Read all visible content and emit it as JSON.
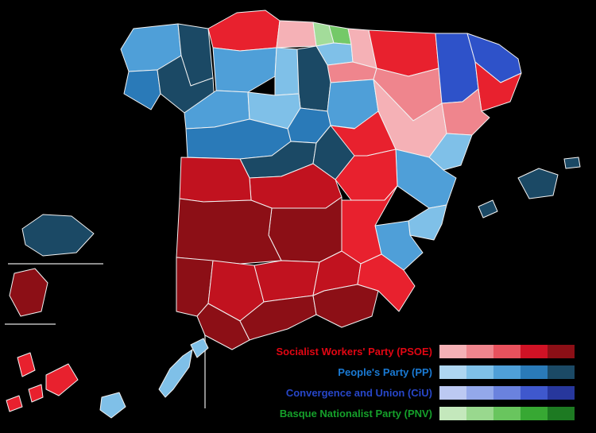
{
  "title": "Spain provincial election results choropleth map",
  "map": {
    "border_color": "#f2f2f2",
    "separator_color": "#8c8c8c",
    "provinces": [
      {
        "id": "a-coruna",
        "party": "PP",
        "fill": "#4f9fd8"
      },
      {
        "id": "lugo",
        "party": "PP",
        "fill": "#1b4965"
      },
      {
        "id": "pontevedra",
        "party": "PP",
        "fill": "#2a7ab8"
      },
      {
        "id": "ourense",
        "party": "PP",
        "fill": "#1b4965"
      },
      {
        "id": "asturias",
        "party": "PSOE",
        "fill": "#e8212e"
      },
      {
        "id": "cantabria",
        "party": "PSOE",
        "fill": "#f5b1b6"
      },
      {
        "id": "bizkaia",
        "party": "PNV",
        "fill": "#a3dc9a"
      },
      {
        "id": "gipuzkoa",
        "party": "PNV",
        "fill": "#74c968"
      },
      {
        "id": "alava",
        "party": "PP",
        "fill": "#7fc0e8"
      },
      {
        "id": "navarra",
        "party": "PSOE",
        "fill": "#f5b1b6"
      },
      {
        "id": "la-rioja",
        "party": "PSOE",
        "fill": "#ef858d"
      },
      {
        "id": "leon",
        "party": "PP",
        "fill": "#4f9fd8"
      },
      {
        "id": "palencia",
        "party": "PP",
        "fill": "#7fc0e8"
      },
      {
        "id": "burgos",
        "party": "PP",
        "fill": "#1b4965"
      },
      {
        "id": "zamora",
        "party": "PP",
        "fill": "#4f9fd8"
      },
      {
        "id": "valladolid",
        "party": "PP",
        "fill": "#7fc0e8"
      },
      {
        "id": "soria",
        "party": "PP",
        "fill": "#4f9fd8"
      },
      {
        "id": "segovia",
        "party": "PP",
        "fill": "#2a7ab8"
      },
      {
        "id": "salamanca",
        "party": "PP",
        "fill": "#2a7ab8"
      },
      {
        "id": "avila",
        "party": "PP",
        "fill": "#1b4965"
      },
      {
        "id": "madrid",
        "party": "PP",
        "fill": "#1b4965"
      },
      {
        "id": "huesca",
        "party": "PSOE",
        "fill": "#e8212e"
      },
      {
        "id": "zaragoza",
        "party": "PSOE",
        "fill": "#ef858d"
      },
      {
        "id": "teruel",
        "party": "PSOE",
        "fill": "#f5b1b6"
      },
      {
        "id": "lleida",
        "party": "CiU",
        "fill": "#2e52c9"
      },
      {
        "id": "girona",
        "party": "CiU",
        "fill": "#2e52c9"
      },
      {
        "id": "barcelona",
        "party": "PSOE",
        "fill": "#e8212e"
      },
      {
        "id": "tarragona",
        "party": "PSOE",
        "fill": "#ef858d"
      },
      {
        "id": "castellon",
        "party": "PP",
        "fill": "#7fc0e8"
      },
      {
        "id": "valencia",
        "party": "PP",
        "fill": "#4f9fd8"
      },
      {
        "id": "alicante",
        "party": "PP",
        "fill": "#7fc0e8"
      },
      {
        "id": "murcia",
        "party": "PP",
        "fill": "#4f9fd8"
      },
      {
        "id": "guadalajara",
        "party": "PSOE",
        "fill": "#e8212e"
      },
      {
        "id": "cuenca",
        "party": "PSOE",
        "fill": "#e8212e"
      },
      {
        "id": "toledo",
        "party": "PSOE",
        "fill": "#c1121f"
      },
      {
        "id": "albacete",
        "party": "PSOE",
        "fill": "#e8212e"
      },
      {
        "id": "ciudad-real",
        "party": "PSOE",
        "fill": "#8c0f16"
      },
      {
        "id": "caceres",
        "party": "PSOE",
        "fill": "#c1121f"
      },
      {
        "id": "badajoz",
        "party": "PSOE",
        "fill": "#8c0f16"
      },
      {
        "id": "huelva",
        "party": "PSOE",
        "fill": "#8c0f16"
      },
      {
        "id": "sevilla",
        "party": "PSOE",
        "fill": "#c1121f"
      },
      {
        "id": "cadiz",
        "party": "PSOE",
        "fill": "#8c0f16"
      },
      {
        "id": "cordoba",
        "party": "PSOE",
        "fill": "#c1121f"
      },
      {
        "id": "malaga",
        "party": "PSOE",
        "fill": "#8c0f16"
      },
      {
        "id": "jaen",
        "party": "PSOE",
        "fill": "#c1121f"
      },
      {
        "id": "granada",
        "party": "PSOE",
        "fill": "#8c0f16"
      },
      {
        "id": "almeria",
        "party": "PSOE",
        "fill": "#e8212e"
      },
      {
        "id": "mallorca",
        "party": "PP",
        "fill": "#1b4965"
      },
      {
        "id": "menorca",
        "party": "PP",
        "fill": "#1b4965"
      },
      {
        "id": "ibiza",
        "party": "PP",
        "fill": "#1b4965"
      },
      {
        "id": "tenerife-inset",
        "party": "PP",
        "fill": "#1b4965"
      },
      {
        "id": "gran-canaria-inset",
        "party": "PSOE",
        "fill": "#8c0f16"
      },
      {
        "id": "la-palma",
        "party": "PSOE",
        "fill": "#e8212e"
      },
      {
        "id": "el-hierro",
        "party": "PSOE",
        "fill": "#e8212e"
      },
      {
        "id": "la-gomera",
        "party": "PSOE",
        "fill": "#e8212e"
      },
      {
        "id": "tenerife-small",
        "party": "PSOE",
        "fill": "#e8212e"
      },
      {
        "id": "gran-canaria-small",
        "party": "PP",
        "fill": "#7fc0e8"
      },
      {
        "id": "fuerteventura",
        "party": "PP",
        "fill": "#7fc0e8"
      },
      {
        "id": "lanzarote",
        "party": "PP",
        "fill": "#7fc0e8"
      }
    ]
  },
  "legend": {
    "entries": [
      {
        "label": "Socialist Workers' Party (PSOE)",
        "text_color": "#e20613",
        "swatches": [
          "#f5b1b6",
          "#ef858d",
          "#e8515d",
          "#d01225",
          "#8c0f16"
        ]
      },
      {
        "label": "People's Party (PP)",
        "text_color": "#1a7ad4",
        "swatches": [
          "#aed6f1",
          "#7fc0e8",
          "#4f9fd8",
          "#2a7ab8",
          "#1b4965"
        ]
      },
      {
        "label": "Convergence and Union (CiU)",
        "text_color": "#2746c8",
        "swatches": [
          "#bcc9f2",
          "#93a8ea",
          "#6a82de",
          "#3f58cd",
          "#27379c"
        ]
      },
      {
        "label": "Basque Nationalist Party (PNV)",
        "text_color": "#15a02a",
        "swatches": [
          "#c4e8bc",
          "#99d88e",
          "#69c55e",
          "#37a833",
          "#1d7a22"
        ]
      }
    ]
  }
}
